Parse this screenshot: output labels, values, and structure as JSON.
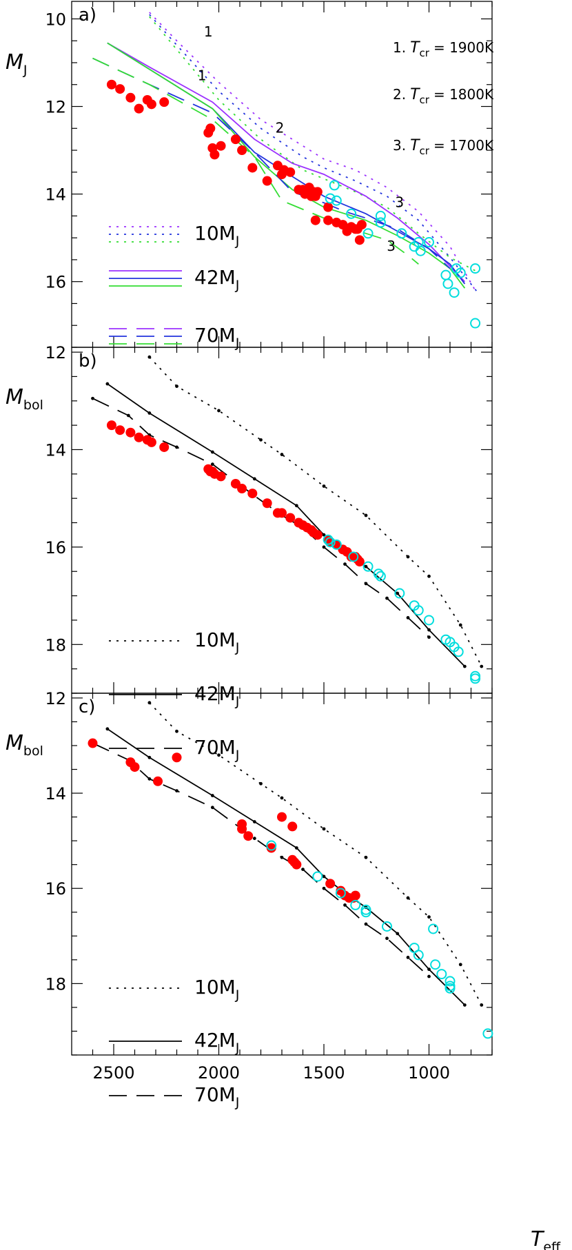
{
  "colors": {
    "axis": "#000000",
    "c1900": "#9b30ff",
    "c1800": "#2233dd",
    "c1700": "#33dd33",
    "field_dot": "#ff0000",
    "cyan_ring": "#00dddd"
  },
  "chart_data": [
    {
      "id": "a",
      "type": "line",
      "panel_label": "a)",
      "ylabel": "M",
      "ylabel_sub": "J",
      "xlim": [
        2700,
        700
      ],
      "ylim": [
        9.6,
        17.5
      ],
      "yticks": [
        10,
        12,
        14,
        16
      ],
      "legend": {
        "placement": "lower-left",
        "entries": [
          {
            "style": "dotted",
            "text": "10M",
            "sub": "J"
          },
          {
            "style": "solid",
            "text": "42M",
            "sub": "J"
          },
          {
            "style": "dashed",
            "text": "70M",
            "sub": "J"
          }
        ]
      },
      "legend_right": [
        {
          "num": "1.",
          "T": "T",
          "sub": "cr",
          "eq": "= 1900K"
        },
        {
          "num": "2.",
          "T": "T",
          "sub": "cr",
          "eq": "= 1800K"
        },
        {
          "num": "3.",
          "T": "T",
          "sub": "cr",
          "eq": "= 1700K"
        }
      ],
      "annotations": [
        {
          "text": "1",
          "x": 2050,
          "y": 10.4
        },
        {
          "text": "1",
          "x": 2080,
          "y": 11.4
        },
        {
          "text": "2",
          "x": 1710,
          "y": 12.6
        },
        {
          "text": "3",
          "x": 1140,
          "y": 14.3
        },
        {
          "text": "3",
          "x": 1180,
          "y": 15.3
        }
      ],
      "series": [
        {
          "color_key": "c1900",
          "style": "dotted",
          "x": [
            2330,
            2200,
            2000,
            1800,
            1600,
            1500,
            1350,
            1200,
            1050,
            900,
            780
          ],
          "y": [
            9.85,
            10.5,
            11.45,
            12.3,
            12.9,
            13.2,
            13.45,
            13.85,
            14.4,
            15.2,
            16.2
          ]
        },
        {
          "color_key": "c1800",
          "style": "dotted",
          "x": [
            2330,
            2200,
            2000,
            1800,
            1600,
            1500,
            1350,
            1200,
            1050,
            900,
            760
          ],
          "y": [
            9.9,
            10.6,
            11.65,
            12.5,
            13.15,
            13.4,
            13.7,
            14.05,
            14.6,
            15.45,
            16.3
          ]
        },
        {
          "color_key": "c1700",
          "style": "dotted",
          "x": [
            2330,
            2200,
            2000,
            1800,
            1600,
            1500,
            1350,
            1200,
            1050,
            900,
            760
          ],
          "y": [
            9.95,
            10.7,
            11.85,
            12.75,
            13.45,
            13.65,
            13.95,
            14.3,
            14.9,
            15.45,
            15.8
          ]
        },
        {
          "color_key": "c1900",
          "style": "solid",
          "x": [
            2530,
            2330,
            2030,
            1830,
            1650,
            1500,
            1300,
            1150,
            1000,
            900,
            830
          ],
          "y": [
            10.55,
            11.1,
            11.9,
            12.75,
            13.3,
            13.55,
            14.05,
            14.55,
            15.15,
            15.65,
            16.0
          ]
        },
        {
          "color_key": "c1800",
          "style": "solid",
          "x": [
            2530,
            2330,
            2030,
            1830,
            1650,
            1500,
            1300,
            1150,
            1000,
            900,
            830
          ],
          "y": [
            10.55,
            11.15,
            12.05,
            13.05,
            13.6,
            14.05,
            14.45,
            14.85,
            15.25,
            15.6,
            16.05
          ]
        },
        {
          "color_key": "c1700",
          "style": "solid",
          "x": [
            2530,
            2330,
            2030,
            1830,
            1650,
            1500,
            1300,
            1150,
            1000,
            900,
            830
          ],
          "y": [
            10.55,
            11.15,
            12.05,
            13.15,
            13.9,
            14.3,
            14.6,
            14.95,
            15.35,
            15.7,
            16.15
          ]
        },
        {
          "color_key": "c1800",
          "style": "dashed",
          "x": [
            2600,
            2330,
            2030,
            1830,
            1650,
            1500,
            1400,
            1300,
            1150,
            1000,
            900
          ],
          "y": [
            10.9,
            11.5,
            12.15,
            13.05,
            13.95,
            14.2,
            14.4,
            14.55,
            14.8,
            15.25,
            15.7
          ]
        },
        {
          "color_key": "c1700",
          "style": "dashed",
          "x": [
            2600,
            2330,
            2030,
            1830,
            1700,
            1650,
            1500,
            1400,
            1300,
            1200,
            1100,
            1050
          ],
          "y": [
            10.9,
            11.5,
            12.3,
            13.15,
            14.15,
            14.25,
            14.55,
            14.75,
            14.9,
            15.05,
            15.4,
            15.6
          ]
        }
      ],
      "points_filled": {
        "x": [
          2510,
          2470,
          2420,
          2380,
          2340,
          2320,
          2260,
          2050,
          2040,
          2030,
          2020,
          1990,
          1920,
          1890,
          1840,
          1770,
          1720,
          1700,
          1690,
          1660,
          1620,
          1600,
          1590,
          1580,
          1570,
          1560,
          1550,
          1540,
          1540,
          1530,
          1480,
          1480,
          1440,
          1410,
          1390,
          1370,
          1350,
          1340,
          1330,
          1320
        ],
        "y": [
          11.5,
          11.6,
          11.8,
          12.05,
          11.85,
          11.95,
          11.9,
          12.6,
          12.5,
          12.95,
          13.1,
          12.9,
          12.75,
          13.0,
          13.4,
          13.7,
          13.35,
          13.55,
          13.45,
          13.5,
          13.9,
          13.9,
          14.0,
          13.95,
          13.85,
          14.05,
          13.95,
          14.6,
          14.05,
          13.95,
          14.3,
          14.6,
          14.65,
          14.7,
          14.85,
          14.75,
          14.8,
          14.8,
          15.05,
          14.7
        ]
      },
      "points_open": {
        "x": [
          1450,
          1470,
          1440,
          1370,
          1230,
          1230,
          1290,
          1130,
          1050,
          1070,
          1040,
          1000,
          920,
          910,
          880,
          870,
          850,
          780,
          780
        ],
        "y": [
          13.8,
          14.1,
          14.15,
          14.45,
          14.5,
          14.65,
          14.9,
          14.9,
          15.1,
          15.2,
          15.3,
          15.1,
          15.85,
          16.05,
          16.25,
          15.7,
          15.8,
          15.7,
          16.95
        ]
      }
    },
    {
      "id": "b",
      "type": "line",
      "panel_label": "b)",
      "ylabel": "M",
      "ylabel_sub": "bol",
      "xlim": [
        2700,
        700
      ],
      "ylim": [
        11.9,
        19.0
      ],
      "yticks": [
        12,
        14,
        16,
        18
      ],
      "legend": {
        "placement": "lower-left",
        "entries": [
          {
            "style": "dotted",
            "text": "10M",
            "sub": "J"
          },
          {
            "style": "solid",
            "text": "42M",
            "sub": "J"
          },
          {
            "style": "dashed",
            "text": "70M",
            "sub": "J"
          }
        ]
      },
      "series": [
        {
          "style": "dotted",
          "x": [
            2330,
            2200,
            2000,
            1800,
            1700,
            1500,
            1300,
            1100,
            1000,
            850,
            750
          ],
          "y": [
            12.1,
            12.7,
            13.2,
            13.8,
            14.1,
            14.75,
            15.35,
            16.2,
            16.6,
            17.6,
            18.45
          ]
        },
        {
          "style": "solid",
          "x": [
            2530,
            2330,
            2030,
            1830,
            1630,
            1500,
            1400,
            1300,
            1150,
            1000,
            830
          ],
          "y": [
            12.65,
            13.25,
            14.05,
            14.6,
            15.15,
            15.75,
            16.1,
            16.4,
            16.95,
            17.7,
            18.45
          ]
        },
        {
          "style": "dashed",
          "x": [
            2600,
            2430,
            2330,
            2200,
            2030,
            1830,
            1700,
            1600,
            1500,
            1400,
            1300,
            1200,
            1100,
            1000
          ],
          "y": [
            12.95,
            13.3,
            13.7,
            13.95,
            14.3,
            14.95,
            15.35,
            15.6,
            16.0,
            16.35,
            16.75,
            17.05,
            17.45,
            17.85
          ]
        }
      ],
      "points_filled": {
        "x": [
          2510,
          2470,
          2420,
          2380,
          2340,
          2320,
          2260,
          2050,
          2040,
          2030,
          2020,
          1990,
          1920,
          1890,
          1840,
          1770,
          1720,
          1700,
          1660,
          1620,
          1600,
          1580,
          1560,
          1550,
          1530,
          1480,
          1470,
          1440,
          1410,
          1390,
          1370,
          1350,
          1340,
          1330
        ],
        "y": [
          13.5,
          13.6,
          13.65,
          13.75,
          13.8,
          13.85,
          13.95,
          14.4,
          14.45,
          14.45,
          14.5,
          14.55,
          14.7,
          14.8,
          14.9,
          15.1,
          15.3,
          15.3,
          15.4,
          15.5,
          15.55,
          15.6,
          15.65,
          15.7,
          15.75,
          15.85,
          15.9,
          15.95,
          16.05,
          16.1,
          16.2,
          16.2,
          16.25,
          16.3
        ]
      },
      "points_open": {
        "x": [
          1480,
          1470,
          1440,
          1360,
          1290,
          1240,
          1230,
          1140,
          1070,
          1050,
          1000,
          920,
          900,
          880,
          860,
          780,
          780
        ],
        "y": [
          15.85,
          15.9,
          15.95,
          16.2,
          16.4,
          16.55,
          16.6,
          16.95,
          17.2,
          17.3,
          17.5,
          17.9,
          17.95,
          18.05,
          18.15,
          18.65,
          18.7
        ]
      }
    },
    {
      "id": "c",
      "type": "line",
      "panel_label": "c)",
      "ylabel": "M",
      "ylabel_sub": "bol",
      "xlabel": "T",
      "xlabel_sub": "eff",
      "xlim": [
        2700,
        700
      ],
      "ylim": [
        11.9,
        19.5
      ],
      "yticks": [
        12,
        14,
        16,
        18
      ],
      "xticks": [
        2500,
        2000,
        1500,
        1000
      ],
      "legend": {
        "placement": "lower-left",
        "entries": [
          {
            "style": "dotted",
            "text": "10M",
            "sub": "J"
          },
          {
            "style": "solid",
            "text": "42M",
            "sub": "J"
          },
          {
            "style": "dashed",
            "text": "70M",
            "sub": "J"
          }
        ]
      },
      "series": [
        {
          "style": "dotted",
          "x": [
            2330,
            2200,
            2000,
            1800,
            1700,
            1500,
            1300,
            1100,
            1000,
            850,
            750
          ],
          "y": [
            12.1,
            12.7,
            13.2,
            13.8,
            14.1,
            14.75,
            15.35,
            16.2,
            16.6,
            17.6,
            18.45
          ]
        },
        {
          "style": "solid",
          "x": [
            2530,
            2330,
            2030,
            1830,
            1630,
            1500,
            1400,
            1300,
            1150,
            1000,
            830
          ],
          "y": [
            12.65,
            13.25,
            14.05,
            14.6,
            15.15,
            15.75,
            16.1,
            16.4,
            16.95,
            17.7,
            18.45
          ]
        },
        {
          "style": "dashed",
          "x": [
            2600,
            2430,
            2330,
            2200,
            2030,
            1830,
            1700,
            1600,
            1500,
            1400,
            1300,
            1200,
            1100,
            1000
          ],
          "y": [
            12.95,
            13.3,
            13.7,
            13.95,
            14.3,
            14.95,
            15.35,
            15.6,
            16.0,
            16.35,
            16.75,
            17.05,
            17.45,
            17.85
          ]
        }
      ],
      "points_filled": {
        "x": [
          2600,
          2420,
          2400,
          2290,
          2200,
          1890,
          1890,
          1860,
          1750,
          1700,
          1650,
          1650,
          1640,
          1630,
          1470,
          1420,
          1400,
          1380,
          1360,
          1350
        ],
        "y": [
          12.95,
          13.35,
          13.45,
          13.75,
          13.25,
          14.65,
          14.75,
          14.9,
          15.15,
          14.5,
          14.7,
          15.4,
          15.45,
          15.5,
          15.9,
          16.05,
          16.15,
          16.2,
          16.2,
          16.15
        ]
      },
      "points_open": {
        "x": [
          1750,
          1530,
          1420,
          1350,
          1300,
          1300,
          1200,
          1070,
          1050,
          980,
          970,
          940,
          900,
          900,
          900,
          720
        ],
        "y": [
          15.1,
          15.75,
          16.1,
          16.35,
          16.45,
          16.5,
          16.8,
          17.25,
          17.4,
          16.85,
          17.6,
          17.8,
          17.95,
          18.05,
          18.1,
          19.05
        ]
      }
    }
  ]
}
